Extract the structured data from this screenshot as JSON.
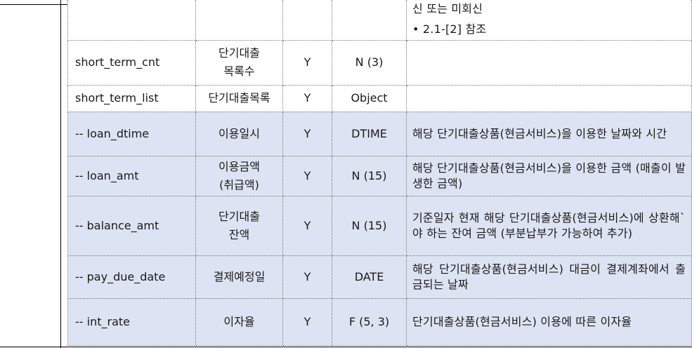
{
  "top_row": {
    "line1": "신 또는 미회신",
    "line2": "• 2.1-[2] 참조"
  },
  "rows": [
    {
      "name": "short_term_cnt",
      "label": "단기대출\n목록수",
      "req": "Y",
      "type": "N (3)",
      "desc": "",
      "highlight": false
    },
    {
      "name": "short_term_list",
      "label": "단기대출목록",
      "req": "Y",
      "type": "Object",
      "desc": "",
      "highlight": false
    },
    {
      "name": "-- loan_dtime",
      "label": "이용일시",
      "req": "Y",
      "type": "DTIME",
      "desc": "해당 단기대출상품(현금서비스)을 이용한 날짜와 시간",
      "highlight": true
    },
    {
      "name": "-- loan_amt",
      "label": "이용금액\n(취급액)",
      "req": "Y",
      "type": "N (15)",
      "desc": "해당 단기대출상품(현금서비스)을 이용한 금액 (매출이 발생한 금액)",
      "highlight": true
    },
    {
      "name": "-- balance_amt",
      "label": "단기대출\n잔액",
      "req": "Y",
      "type": "N (15)",
      "desc": "기준일자 현재 해당 단기대출상품(현금서비스)에 상환해`야 하는 잔여 금액 (부분납부가 가능하여 추가)",
      "highlight": true
    },
    {
      "name": "-- pay_due_date",
      "label": "결제예정일",
      "req": "Y",
      "type": "DATE",
      "desc": "해당 단기대출상품(현금서비스) 대금이 결제계좌에서 출금되는 날짜",
      "highlight": true
    },
    {
      "name": "-- int_rate",
      "label": "이자율",
      "req": "Y",
      "type": "F (5, 3)",
      "desc": "단기대출상품(현금서비스) 이용에 따른 이자율",
      "highlight": true
    }
  ]
}
